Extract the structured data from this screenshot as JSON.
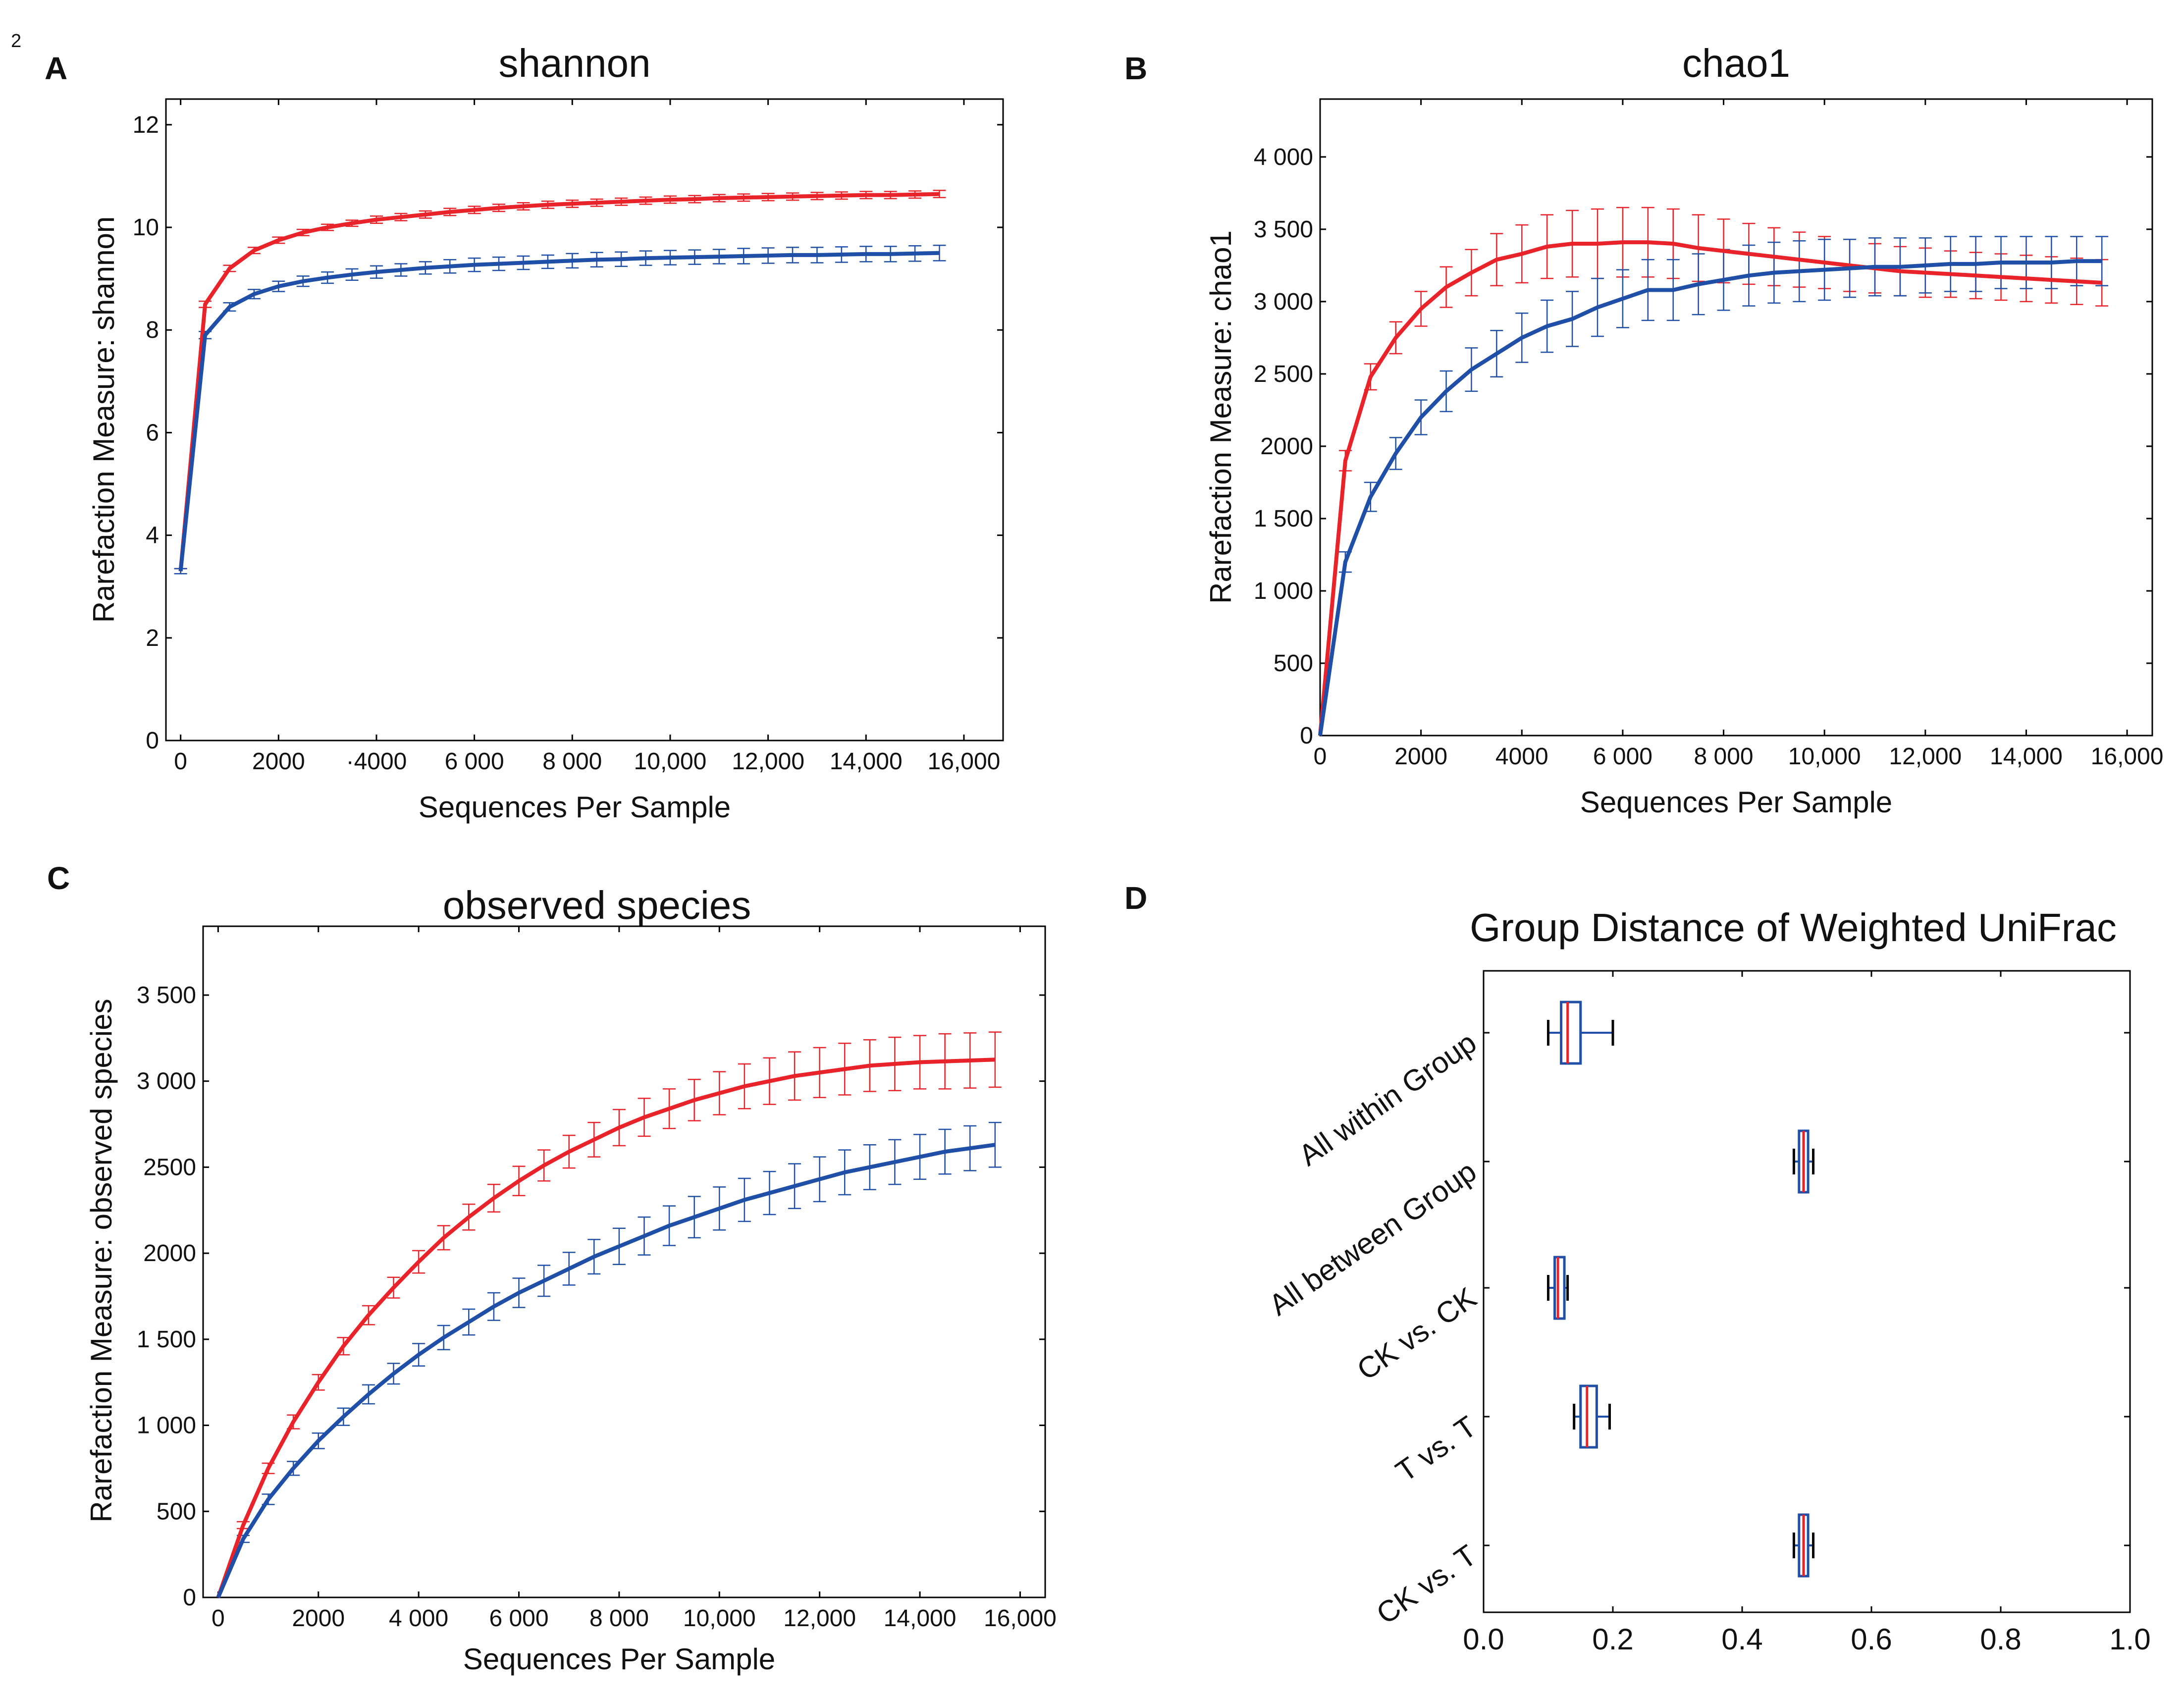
{
  "page_number": "2",
  "colors": {
    "series_red": "#e8232a",
    "series_blue": "#1f4fa6",
    "whisker_black": "#000000"
  },
  "chart_data": [
    {
      "id": "A",
      "panel_label": "A",
      "type": "line",
      "title": "shannon",
      "xlabel": "Sequences Per Sample",
      "ylabel": "Rarefaction Measure: shannon",
      "xlim": [
        -300,
        16800
      ],
      "ylim": [
        0,
        12.5
      ],
      "x_ticks": [
        0,
        2000,
        4000,
        6000,
        8000,
        10000,
        12000,
        14000,
        16000
      ],
      "x_tick_labels": [
        "0",
        "2000",
        "·4000",
        "6 000",
        "8 000",
        "10,000",
        "12,000",
        "14,000",
        "16,000"
      ],
      "y_ticks": [
        0,
        2,
        4,
        6,
        8,
        10,
        12
      ],
      "y_tick_labels": [
        "0",
        "2",
        "4",
        "6",
        "8",
        "10",
        "12"
      ],
      "series": [
        {
          "name": "red",
          "color": "#e8232a",
          "x": [
            0,
            500,
            1000,
            1500,
            2000,
            2500,
            3000,
            3500,
            4000,
            4500,
            5000,
            5500,
            6000,
            6500,
            7000,
            7500,
            8000,
            8500,
            9000,
            9500,
            10000,
            10500,
            11000,
            11500,
            12000,
            12500,
            13000,
            13500,
            14000,
            14500,
            15000,
            15500
          ],
          "y": [
            3.3,
            8.5,
            9.2,
            9.55,
            9.75,
            9.9,
            10.0,
            10.08,
            10.15,
            10.2,
            10.25,
            10.3,
            10.34,
            10.38,
            10.41,
            10.44,
            10.46,
            10.48,
            10.5,
            10.52,
            10.54,
            10.55,
            10.57,
            10.58,
            10.59,
            10.6,
            10.61,
            10.62,
            10.63,
            10.63,
            10.64,
            10.65
          ],
          "err": [
            0.05,
            0.06,
            0.06,
            0.06,
            0.06,
            0.06,
            0.06,
            0.06,
            0.07,
            0.07,
            0.07,
            0.07,
            0.07,
            0.07,
            0.07,
            0.07,
            0.07,
            0.07,
            0.07,
            0.07,
            0.07,
            0.07,
            0.07,
            0.07,
            0.07,
            0.07,
            0.07,
            0.07,
            0.07,
            0.07,
            0.07,
            0.07
          ]
        },
        {
          "name": "blue",
          "color": "#1f4fa6",
          "x": [
            0,
            500,
            1000,
            1500,
            2000,
            2500,
            3000,
            3500,
            4000,
            4500,
            5000,
            5500,
            6000,
            6500,
            7000,
            7500,
            8000,
            8500,
            9000,
            9500,
            10000,
            10500,
            11000,
            11500,
            12000,
            12500,
            13000,
            13500,
            14000,
            14500,
            15000,
            15500
          ],
          "y": [
            3.3,
            7.9,
            8.45,
            8.7,
            8.85,
            8.95,
            9.02,
            9.08,
            9.13,
            9.17,
            9.21,
            9.24,
            9.27,
            9.29,
            9.31,
            9.33,
            9.35,
            9.37,
            9.38,
            9.4,
            9.41,
            9.42,
            9.43,
            9.44,
            9.45,
            9.46,
            9.46,
            9.47,
            9.48,
            9.48,
            9.49,
            9.5
          ],
          "err": [
            0.05,
            0.07,
            0.08,
            0.09,
            0.1,
            0.1,
            0.11,
            0.11,
            0.12,
            0.12,
            0.12,
            0.13,
            0.13,
            0.13,
            0.13,
            0.13,
            0.14,
            0.14,
            0.14,
            0.14,
            0.14,
            0.14,
            0.14,
            0.15,
            0.15,
            0.15,
            0.15,
            0.15,
            0.15,
            0.15,
            0.15,
            0.15
          ]
        }
      ]
    },
    {
      "id": "B",
      "panel_label": "B",
      "type": "line",
      "title": "chao1",
      "xlabel": "Sequences Per Sample",
      "ylabel": "Rarefaction Measure: chao1",
      "xlim": [
        0,
        16500
      ],
      "ylim": [
        0,
        4400
      ],
      "x_ticks": [
        0,
        2000,
        4000,
        6000,
        8000,
        10000,
        12000,
        14000,
        16000
      ],
      "x_tick_labels": [
        "0",
        "2000",
        "4000",
        "6 000",
        "8 000",
        "10,000",
        "12,000",
        "14,000",
        "16,000"
      ],
      "y_ticks": [
        0,
        500,
        1000,
        1500,
        2000,
        2500,
        3000,
        3500,
        4000
      ],
      "y_tick_labels": [
        "0",
        "500",
        "1 000",
        "1 500",
        "2000",
        "2 500",
        "3 000",
        "3 500",
        "4 000"
      ],
      "series": [
        {
          "name": "red",
          "color": "#e8232a",
          "x": [
            0,
            500,
            1000,
            1500,
            2000,
            2500,
            3000,
            3500,
            4000,
            4500,
            5000,
            5500,
            6000,
            6500,
            7000,
            7500,
            8000,
            8500,
            9000,
            9500,
            10000,
            10500,
            11000,
            11500,
            12000,
            12500,
            13000,
            13500,
            14000,
            14500,
            15000,
            15500
          ],
          "y": [
            0,
            1900,
            2480,
            2750,
            2950,
            3100,
            3200,
            3290,
            3330,
            3380,
            3400,
            3400,
            3410,
            3410,
            3400,
            3370,
            3350,
            3330,
            3310,
            3290,
            3270,
            3250,
            3230,
            3210,
            3200,
            3190,
            3180,
            3170,
            3160,
            3150,
            3140,
            3130
          ],
          "err": [
            0,
            70,
            90,
            110,
            120,
            140,
            160,
            180,
            200,
            220,
            230,
            240,
            240,
            240,
            240,
            230,
            220,
            210,
            200,
            190,
            180,
            180,
            170,
            170,
            170,
            160,
            160,
            160,
            160,
            160,
            160,
            160
          ]
        },
        {
          "name": "blue",
          "color": "#1f4fa6",
          "x": [
            0,
            500,
            1000,
            1500,
            2000,
            2500,
            3000,
            3500,
            4000,
            4500,
            5000,
            5500,
            6000,
            6500,
            7000,
            7500,
            8000,
            8500,
            9000,
            9500,
            10000,
            10500,
            11000,
            11500,
            12000,
            12500,
            13000,
            13500,
            14000,
            14500,
            15000,
            15500
          ],
          "y": [
            0,
            1200,
            1650,
            1950,
            2200,
            2380,
            2530,
            2640,
            2750,
            2830,
            2880,
            2960,
            3020,
            3080,
            3080,
            3120,
            3150,
            3180,
            3200,
            3210,
            3220,
            3230,
            3240,
            3240,
            3250,
            3260,
            3260,
            3270,
            3270,
            3270,
            3280,
            3280
          ],
          "err": [
            0,
            70,
            100,
            110,
            120,
            140,
            150,
            160,
            170,
            180,
            190,
            200,
            200,
            210,
            210,
            210,
            210,
            210,
            210,
            210,
            210,
            200,
            200,
            200,
            190,
            190,
            190,
            180,
            180,
            180,
            170,
            170
          ]
        }
      ]
    },
    {
      "id": "C",
      "panel_label": "C",
      "type": "line",
      "title": "observed species",
      "xlabel": "Sequences Per Sample",
      "ylabel": "Rarefaction Measure: observed species",
      "xlim": [
        -300,
        16500
      ],
      "ylim": [
        0,
        3900
      ],
      "x_ticks": [
        0,
        2000,
        4000,
        6000,
        8000,
        10000,
        12000,
        14000,
        16000
      ],
      "x_tick_labels": [
        "0",
        "2000",
        "4 000",
        "6 000",
        "8 000",
        "10,000",
        "12,000",
        "14,000",
        "16,000"
      ],
      "y_ticks": [
        0,
        500,
        1000,
        1500,
        2000,
        2500,
        3000,
        3500
      ],
      "y_tick_labels": [
        "0",
        "500",
        "1 000",
        "1 500",
        "2000",
        "2500",
        "3 000",
        "3 500"
      ],
      "series": [
        {
          "name": "red",
          "color": "#e8232a",
          "x": [
            0,
            500,
            1000,
            1500,
            2000,
            2500,
            3000,
            3500,
            4000,
            4500,
            5000,
            5500,
            6000,
            6500,
            7000,
            7500,
            8000,
            8500,
            9000,
            9500,
            10000,
            10500,
            11000,
            11500,
            12000,
            12500,
            13000,
            13500,
            14000,
            14500,
            15000,
            15500
          ],
          "y": [
            0,
            420,
            750,
            1020,
            1250,
            1460,
            1640,
            1800,
            1950,
            2090,
            2210,
            2320,
            2420,
            2510,
            2590,
            2660,
            2730,
            2790,
            2840,
            2890,
            2930,
            2970,
            3000,
            3030,
            3050,
            3070,
            3090,
            3100,
            3110,
            3115,
            3120,
            3125
          ],
          "err": [
            0,
            20,
            30,
            40,
            45,
            50,
            55,
            60,
            65,
            70,
            75,
            80,
            85,
            90,
            95,
            100,
            105,
            110,
            115,
            120,
            125,
            130,
            135,
            140,
            145,
            150,
            150,
            155,
            155,
            160,
            160,
            160
          ]
        },
        {
          "name": "blue",
          "color": "#1f4fa6",
          "x": [
            0,
            500,
            1000,
            1500,
            2000,
            2500,
            3000,
            3500,
            4000,
            4500,
            5000,
            5500,
            6000,
            6500,
            7000,
            7500,
            8000,
            8500,
            9000,
            9500,
            10000,
            10500,
            11000,
            11500,
            12000,
            12500,
            13000,
            13500,
            14000,
            14500,
            15000,
            15500
          ],
          "y": [
            0,
            340,
            570,
            750,
            910,
            1050,
            1180,
            1300,
            1410,
            1510,
            1600,
            1690,
            1770,
            1840,
            1910,
            1980,
            2040,
            2100,
            2160,
            2210,
            2260,
            2310,
            2350,
            2390,
            2430,
            2470,
            2500,
            2530,
            2560,
            2590,
            2610,
            2630
          ],
          "err": [
            0,
            20,
            30,
            40,
            45,
            50,
            55,
            60,
            65,
            70,
            75,
            80,
            85,
            90,
            95,
            100,
            105,
            110,
            115,
            120,
            125,
            125,
            125,
            130,
            130,
            130,
            130,
            130,
            130,
            130,
            130,
            130
          ]
        }
      ]
    },
    {
      "id": "D",
      "panel_label": "D",
      "type": "boxplot",
      "title": "Group Distance of Weighted UniFrac",
      "xlim": [
        0,
        1.0
      ],
      "x_ticks": [
        0.0,
        0.2,
        0.4,
        0.6,
        0.8,
        1.0
      ],
      "x_tick_labels": [
        "0.0",
        "0.2",
        "0.4",
        "0.6",
        "0.8",
        "1.0"
      ],
      "categories": [
        "All within Group",
        "All between Group",
        "CK vs. CK",
        "T vs. T",
        "CK vs. T"
      ],
      "boxes": [
        {
          "label": "All within Group",
          "min": 0.1,
          "q1": 0.12,
          "median": 0.13,
          "q3": 0.15,
          "max": 0.2
        },
        {
          "label": "All between Group",
          "min": 0.48,
          "q1": 0.488,
          "median": 0.495,
          "q3": 0.502,
          "max": 0.51
        },
        {
          "label": "CK vs. CK",
          "min": 0.1,
          "q1": 0.11,
          "median": 0.115,
          "q3": 0.125,
          "max": 0.13
        },
        {
          "label": "T vs. T",
          "min": 0.14,
          "q1": 0.15,
          "median": 0.16,
          "q3": 0.175,
          "max": 0.195
        },
        {
          "label": "CK vs. T",
          "min": 0.48,
          "q1": 0.488,
          "median": 0.495,
          "q3": 0.502,
          "max": 0.51
        }
      ]
    }
  ]
}
